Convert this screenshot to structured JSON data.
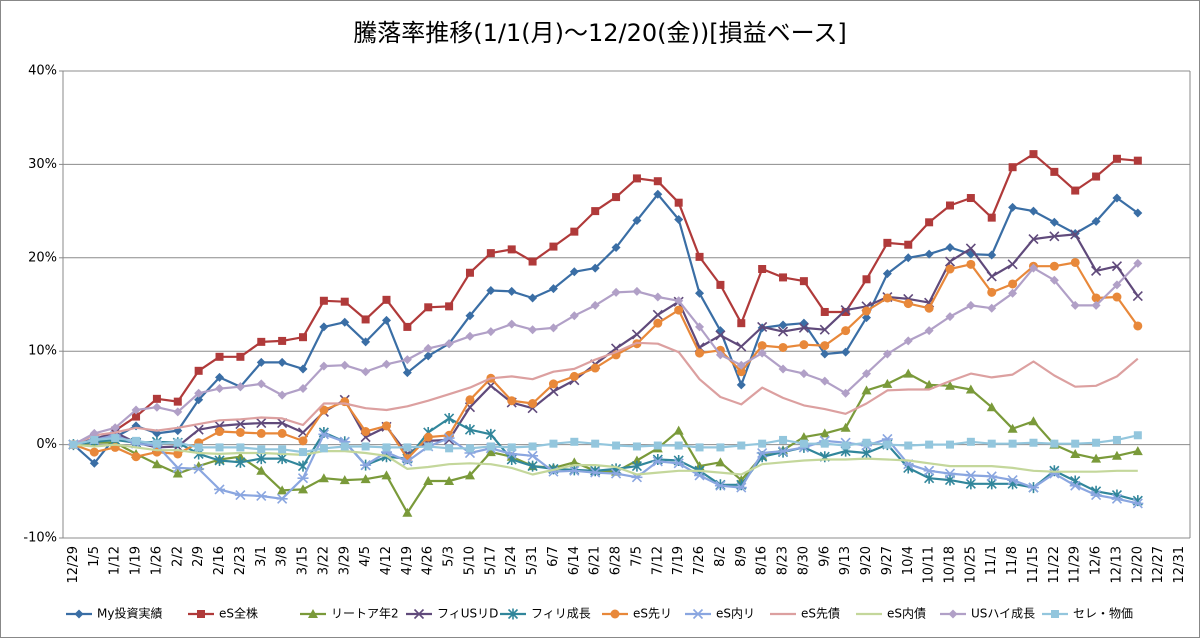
{
  "chart_data": {
    "type": "line",
    "title": "騰落率推移(1/1(月)～12/20(金))[損益ベース]",
    "categories": [
      "12/29",
      "1/5",
      "1/12",
      "1/19",
      "1/26",
      "2/2",
      "2/9",
      "2/16",
      "2/23",
      "3/1",
      "3/8",
      "3/15",
      "3/22",
      "3/29",
      "4/5",
      "4/12",
      "4/19",
      "4/26",
      "5/3",
      "5/10",
      "5/17",
      "5/24",
      "5/31",
      "6/7",
      "6/14",
      "6/21",
      "6/28",
      "7/5",
      "7/12",
      "7/19",
      "7/26",
      "8/2",
      "8/9",
      "8/16",
      "8/23",
      "8/30",
      "9/6",
      "9/13",
      "9/20",
      "9/27",
      "10/4",
      "10/11",
      "10/18",
      "10/25",
      "11/1",
      "11/8",
      "11/15",
      "11/22",
      "11/29",
      "12/6",
      "12/13",
      "12/20",
      "12/27",
      "12/31"
    ],
    "ylim": [
      -10,
      40
    ],
    "yticks": [
      {
        "value": -10,
        "label": "-10%"
      },
      {
        "value": 0,
        "label": "0%"
      },
      {
        "value": 10,
        "label": "10%"
      },
      {
        "value": 20,
        "label": "20%"
      },
      {
        "value": 30,
        "label": "30%"
      },
      {
        "value": 40,
        "label": "40%"
      }
    ],
    "grid": true,
    "legend": "bottom",
    "series": [
      {
        "name": "My投資実績",
        "color": "#3a6ea5",
        "marker": "diamond",
        "values": [
          0,
          -2,
          0.8,
          2,
          1.2,
          1.5,
          4.8,
          7.2,
          6.2,
          8.8,
          8.8,
          8.1,
          12.6,
          13.1,
          11,
          13.3,
          7.7,
          9.5,
          10.8,
          13.8,
          16.5,
          16.4,
          15.7,
          16.7,
          18.5,
          18.9,
          21.1,
          24,
          26.8,
          24.1,
          16.2,
          12.2,
          6.4,
          12.5,
          12.8,
          13,
          9.7,
          9.9,
          13.6,
          18.3,
          20,
          20.4,
          21.1,
          20.4,
          20.3,
          25.4,
          25,
          23.8,
          22.6,
          23.9,
          26.4,
          24.8,
          null,
          null
        ]
      },
      {
        "name": "eS全株",
        "color": "#b03a3a",
        "marker": "square",
        "values": [
          0,
          0.3,
          1.5,
          3,
          4.9,
          4.6,
          7.9,
          9.4,
          9.4,
          11,
          11.1,
          11.5,
          15.4,
          15.3,
          13.4,
          15.5,
          12.6,
          14.7,
          14.8,
          18.4,
          20.5,
          20.9,
          19.6,
          21.2,
          22.8,
          25,
          26.5,
          28.5,
          28.2,
          25.9,
          20.1,
          17.1,
          13,
          18.8,
          17.9,
          17.5,
          14.2,
          14.2,
          17.7,
          21.6,
          21.4,
          23.8,
          25.6,
          26.4,
          24.3,
          29.7,
          31.1,
          29.2,
          27.2,
          28.7,
          30.6,
          30.4,
          null,
          null
        ]
      },
      {
        "name": "リートア年2",
        "color": "#7a9a3a",
        "marker": "triangle",
        "values": [
          0,
          0.2,
          0.2,
          -1,
          -2.1,
          -3.1,
          -2.3,
          -1.6,
          -1.3,
          -2.8,
          -4.9,
          -4.8,
          -3.6,
          -3.8,
          -3.7,
          -3.3,
          -7.3,
          -3.9,
          -3.9,
          -3.3,
          -0.8,
          -1.3,
          -2.3,
          -2.5,
          -1.9,
          -2.8,
          -2.9,
          -1.7,
          -0.4,
          1.5,
          -2.3,
          -1.9,
          -3.8,
          -1.2,
          -0.6,
          0.8,
          1.2,
          1.8,
          5.8,
          6.5,
          7.6,
          6.4,
          6.3,
          5.9,
          4,
          1.7,
          2.5,
          0,
          -1,
          -1.5,
          -1.2,
          -0.7,
          null,
          null
        ]
      },
      {
        "name": "フィUSリD",
        "color": "#604a7b",
        "marker": "x",
        "values": [
          0,
          0.6,
          1.3,
          0.2,
          -0.3,
          -0.2,
          1.6,
          2,
          2.2,
          2.3,
          2.3,
          1.3,
          3.5,
          4.8,
          0.8,
          1.9,
          -1,
          0.4,
          0.5,
          4,
          6.3,
          4.5,
          3.9,
          5.7,
          6.9,
          8.6,
          10.3,
          11.8,
          13.9,
          15.3,
          10.4,
          11.7,
          10.5,
          12.6,
          12.1,
          12.5,
          12.3,
          14.4,
          14.8,
          15.8,
          15.6,
          15.2,
          19.6,
          21,
          18,
          19.3,
          22,
          22.3,
          22.5,
          18.6,
          19.1,
          15.9,
          null,
          null
        ]
      },
      {
        "name": "フィリ成長",
        "color": "#31869b",
        "marker": "asterisk",
        "values": [
          0,
          0.3,
          0.5,
          0.2,
          0.3,
          0.2,
          -1,
          -1.7,
          -1.9,
          -1.5,
          -1.5,
          -2.3,
          1.3,
          0.3,
          -2.2,
          -1.3,
          -1.5,
          1.3,
          2.8,
          1.6,
          1.1,
          -1.6,
          -2.3,
          -2.6,
          -2.7,
          -2.8,
          -2.6,
          -2.3,
          -1.6,
          -1.7,
          -2.8,
          -4.3,
          -4.3,
          -1.3,
          -0.8,
          -0.3,
          -1.3,
          -0.7,
          -0.9,
          0,
          -2.5,
          -3.6,
          -3.8,
          -4.2,
          -4.2,
          -4.2,
          -4.6,
          -2.8,
          -3.9,
          -5,
          -5.4,
          -6,
          null,
          null
        ]
      },
      {
        "name": "eS先リ",
        "color": "#e8883a",
        "marker": "circle",
        "values": [
          0,
          -0.8,
          -0.3,
          -1.3,
          -0.8,
          -1,
          0.2,
          1.4,
          1.3,
          1.2,
          1.2,
          0.4,
          3.7,
          4.6,
          1.4,
          2,
          -1.5,
          0.8,
          1,
          4.8,
          7.1,
          4.7,
          4.4,
          6.5,
          7.3,
          8.2,
          9.6,
          10.8,
          13,
          14.4,
          9.8,
          10.1,
          7.8,
          10.6,
          10.4,
          10.7,
          10.6,
          12.2,
          14.3,
          15.7,
          15.1,
          14.6,
          18.8,
          19.3,
          16.3,
          17.2,
          19.1,
          19.1,
          19.5,
          15.7,
          15.8,
          12.7,
          null,
          null
        ]
      },
      {
        "name": "eS内リ",
        "color": "#8aa6e0",
        "marker": "star",
        "values": [
          0,
          0.5,
          1,
          0.1,
          -0.1,
          -2.5,
          -2.6,
          -4.8,
          -5.4,
          -5.5,
          -5.8,
          -3.6,
          1.1,
          0.3,
          -2.2,
          -0.8,
          -1.8,
          -0.2,
          0.7,
          -0.9,
          -0.4,
          -1,
          -1.2,
          -2.9,
          -2.8,
          -3,
          -3.1,
          -3.5,
          -1.8,
          -2,
          -3.3,
          -4.4,
          -4.6,
          -0.9,
          -0.7,
          -0.3,
          0.4,
          0.2,
          -0.1,
          0.6,
          -2.1,
          -2.8,
          -3.1,
          -3.3,
          -3.4,
          -3.8,
          -4.6,
          -3.1,
          -4.4,
          -5.4,
          -5.8,
          -6.3,
          null,
          null
        ]
      },
      {
        "name": "eS先債",
        "color": "#dca0a0",
        "marker": "none",
        "values": [
          0,
          1,
          1.3,
          1.8,
          1.5,
          1.8,
          2.2,
          2.6,
          2.7,
          2.9,
          2.8,
          2.1,
          4.4,
          4.4,
          3.9,
          3.7,
          4.1,
          4.7,
          5.4,
          6.1,
          7.1,
          7.3,
          7,
          7.8,
          8.1,
          9.1,
          9.9,
          10.9,
          10.8,
          9.9,
          7,
          5.1,
          4.3,
          6.1,
          5,
          4.2,
          3.8,
          3.3,
          4.4,
          5.8,
          5.9,
          5.9,
          6.8,
          7.6,
          7.2,
          7.5,
          8.9,
          7.4,
          6.2,
          6.3,
          7.3,
          9.2,
          null,
          null
        ]
      },
      {
        "name": "eS内債",
        "color": "#c4d79b",
        "marker": "none",
        "values": [
          0,
          -0.2,
          0,
          -0.3,
          -0.6,
          -0.6,
          -0.9,
          -1,
          -0.9,
          -0.9,
          -1,
          -1.1,
          -0.7,
          -0.7,
          -0.9,
          -1.2,
          -2.6,
          -2.4,
          -2.1,
          -2,
          -2.1,
          -2.5,
          -3.2,
          -2.7,
          -2.2,
          -2.2,
          -2.4,
          -3.2,
          -3,
          -2.8,
          -2.8,
          -3,
          -3.2,
          -2.1,
          -1.9,
          -1.7,
          -1.6,
          -1.6,
          -1.5,
          -1.6,
          -1.7,
          -2,
          -2.3,
          -2.3,
          -2.3,
          -2.5,
          -2.8,
          -2.9,
          -2.9,
          -2.9,
          -2.8,
          -2.8,
          null,
          null
        ]
      },
      {
        "name": "USハイ成長",
        "color": "#b1a0c7",
        "marker": "diamond",
        "values": [
          0,
          1.2,
          1.8,
          3.7,
          4,
          3.5,
          5.5,
          6,
          6.2,
          6.5,
          5.3,
          6,
          8.4,
          8.5,
          7.8,
          8.6,
          9.1,
          10.3,
          10.8,
          11.6,
          12.1,
          12.9,
          12.3,
          12.5,
          13.8,
          14.9,
          16.3,
          16.4,
          15.8,
          15.4,
          12.6,
          9.6,
          8.5,
          9.8,
          8.1,
          7.6,
          6.8,
          5.5,
          7.6,
          9.7,
          11.1,
          12.2,
          13.7,
          14.9,
          14.6,
          16.2,
          18.9,
          17.6,
          14.9,
          14.9,
          17.1,
          19.4,
          null,
          null
        ]
      },
      {
        "name": "セレ・物価",
        "color": "#93c6dd",
        "marker": "square",
        "values": [
          0,
          0.5,
          0.7,
          0.4,
          0.1,
          0.2,
          -0.3,
          -0.3,
          -0.3,
          -0.5,
          -0.5,
          -0.8,
          -0.4,
          -0.2,
          -0.2,
          -0.3,
          -0.3,
          -0.2,
          -0.4,
          -0.4,
          -0.2,
          -0.3,
          -0.2,
          0.1,
          0.3,
          0.1,
          -0.1,
          -0.2,
          -0.1,
          -0.1,
          -0.3,
          -0.3,
          -0.1,
          0.1,
          0.5,
          0.1,
          0.1,
          -0.1,
          0.2,
          0,
          -0.1,
          0,
          0,
          0.3,
          0.1,
          0.1,
          0.2,
          0.1,
          0.1,
          0.2,
          0.5,
          1,
          null,
          null
        ]
      }
    ]
  }
}
